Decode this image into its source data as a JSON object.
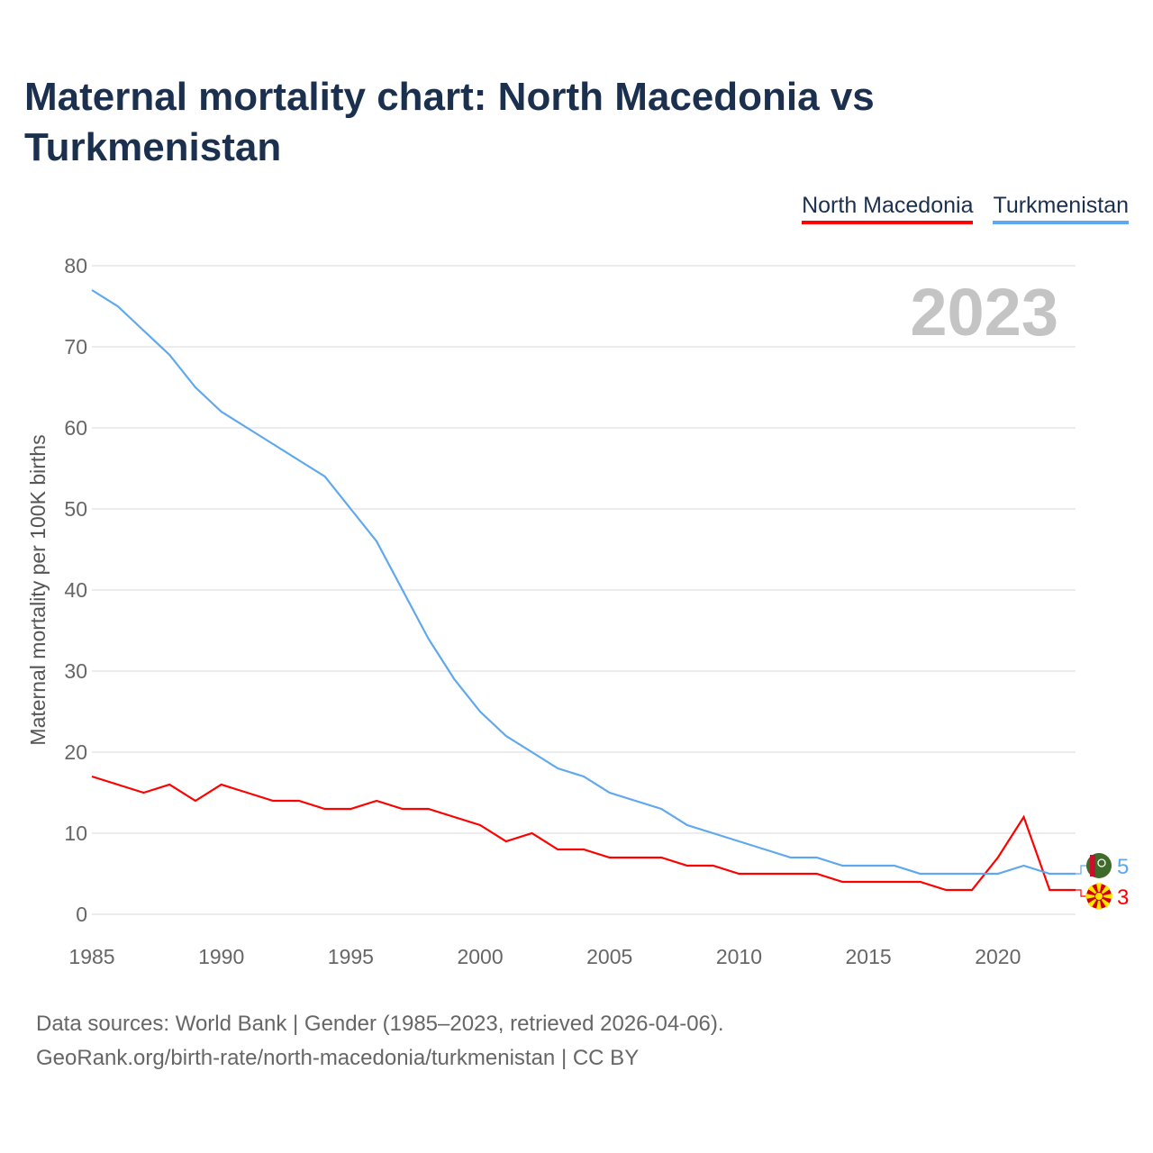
{
  "title": "Maternal mortality chart: North Macedonia vs Turkmenistan",
  "footer": {
    "line1": "Data sources: World Bank | Gender (1985–2023, retrieved 2026-04-06).",
    "line2": "GeoRank.org/birth-rate/north-macedonia/turkmenistan | CC BY"
  },
  "chart_data": {
    "type": "line",
    "title": "Maternal mortality chart: North Macedonia vs Turkmenistan",
    "ylabel": "Maternal mortality per 100K births",
    "xlabel": "",
    "year_label": "2023",
    "xlim": [
      1985,
      2023
    ],
    "ylim": [
      0,
      80
    ],
    "xticks": [
      1985,
      1990,
      1995,
      2000,
      2005,
      2010,
      2015,
      2020
    ],
    "yticks": [
      0,
      10,
      20,
      30,
      40,
      50,
      60,
      70,
      80
    ],
    "legend_position": "top-right",
    "x": [
      1985,
      1986,
      1987,
      1988,
      1989,
      1990,
      1991,
      1992,
      1993,
      1994,
      1995,
      1996,
      1997,
      1998,
      1999,
      2000,
      2001,
      2002,
      2003,
      2004,
      2005,
      2006,
      2007,
      2008,
      2009,
      2010,
      2011,
      2012,
      2013,
      2014,
      2015,
      2016,
      2017,
      2018,
      2019,
      2020,
      2021,
      2022,
      2023
    ],
    "series": [
      {
        "name": "North Macedonia",
        "color": "#ff0000",
        "end_label": "3",
        "values": [
          17,
          16,
          15,
          16,
          14,
          16,
          15,
          14,
          14,
          13,
          13,
          14,
          13,
          13,
          12,
          11,
          9,
          10,
          8,
          8,
          7,
          7,
          7,
          6,
          6,
          5,
          5,
          5,
          5,
          4,
          4,
          4,
          4,
          3,
          3,
          7,
          12,
          3,
          3
        ]
      },
      {
        "name": "Turkmenistan",
        "color": "#5fa8ee",
        "end_label": "5",
        "values": [
          77,
          75,
          72,
          69,
          65,
          62,
          60,
          58,
          56,
          54,
          50,
          46,
          40,
          34,
          29,
          25,
          22,
          20,
          18,
          17,
          15,
          14,
          13,
          11,
          10,
          9,
          8,
          7,
          7,
          6,
          6,
          6,
          5,
          5,
          5,
          5,
          6,
          5,
          5
        ]
      }
    ]
  }
}
